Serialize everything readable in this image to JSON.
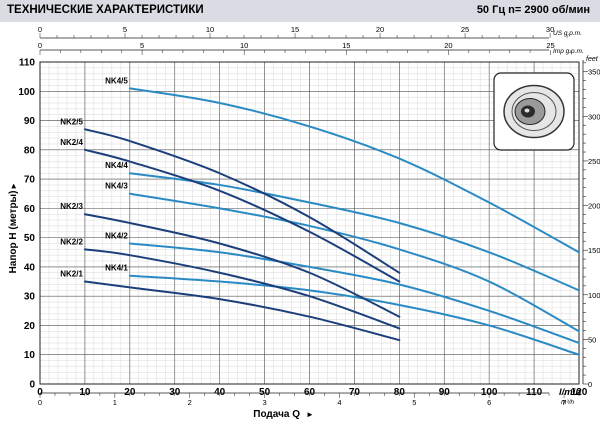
{
  "header": {
    "title": "ТЕХНИЧЕСКИЕ ХАРАКТЕРИСТИКИ",
    "right": "50 Гц   n= 2900 об/мин"
  },
  "image_badge": "pump-impeller-image",
  "chart_data": {
    "type": "line",
    "xlabel": "Подача Q",
    "ylabel": "Напор H (метры)",
    "xlim": [
      0,
      120
    ],
    "ylim": [
      0,
      110
    ],
    "x_ticks": [
      0,
      10,
      20,
      30,
      40,
      50,
      60,
      70,
      80,
      90,
      100,
      110,
      120
    ],
    "y_ticks": [
      0,
      10,
      20,
      30,
      40,
      50,
      60,
      70,
      80,
      90,
      100,
      110
    ],
    "x_unit": "l/min",
    "y_right_unit": "feet",
    "feet_ticks": [
      0,
      50,
      100,
      150,
      200,
      250,
      300,
      350
    ],
    "top_us_ticks": [
      0,
      5,
      10,
      15,
      20,
      25,
      30
    ],
    "top_us_unit": "US g.p.m.",
    "top_imp_ticks": [
      0,
      5,
      10,
      15,
      20,
      25
    ],
    "top_imp_unit": "Imp g.p.m.",
    "bottom_m3h_ticks": [
      0,
      1,
      2,
      3,
      4,
      5,
      6,
      7
    ],
    "bottom_m3h_unit": "m³/h",
    "grid": true,
    "series": [
      {
        "name": "NK4/5",
        "x": [
          20,
          40,
          60,
          80,
          100,
          120
        ],
        "y": [
          101,
          96,
          88,
          77,
          62,
          45
        ],
        "color": "#2a8bc4"
      },
      {
        "name": "NK4/4",
        "x": [
          20,
          40,
          60,
          80,
          100,
          120
        ],
        "y": [
          72,
          68,
          62,
          55,
          45,
          32
        ],
        "color": "#2a8bc4"
      },
      {
        "name": "NK4/3",
        "x": [
          20,
          40,
          60,
          80,
          100,
          120
        ],
        "y": [
          65,
          60,
          54,
          46,
          35,
          18
        ],
        "color": "#2a8bc4"
      },
      {
        "name": "NK4/2",
        "x": [
          20,
          40,
          60,
          80,
          100,
          120
        ],
        "y": [
          48,
          45,
          40,
          34,
          25,
          14
        ],
        "color": "#2a8bc4"
      },
      {
        "name": "NK4/1",
        "x": [
          20,
          40,
          60,
          80,
          100,
          120
        ],
        "y": [
          37,
          35,
          32,
          27,
          20,
          10
        ],
        "color": "#2a8bc4"
      },
      {
        "name": "NK2/5",
        "x": [
          10,
          20,
          40,
          60,
          80
        ],
        "y": [
          87,
          83,
          72,
          57,
          38
        ],
        "color": "#1c3f7c"
      },
      {
        "name": "NK2/4",
        "x": [
          10,
          20,
          40,
          60,
          80
        ],
        "y": [
          80,
          76,
          66,
          52,
          35
        ],
        "color": "#1c3f7c"
      },
      {
        "name": "NK2/3",
        "x": [
          10,
          20,
          40,
          60,
          80
        ],
        "y": [
          58,
          55,
          48,
          38,
          23
        ],
        "color": "#1c3f7c"
      },
      {
        "name": "NK2/2",
        "x": [
          10,
          20,
          40,
          60,
          80
        ],
        "y": [
          46,
          44,
          38,
          30,
          19
        ],
        "color": "#1c3f7c"
      },
      {
        "name": "NK2/1",
        "x": [
          10,
          20,
          40,
          60,
          80
        ],
        "y": [
          35,
          33,
          29,
          23,
          15
        ],
        "color": "#1c3f7c"
      }
    ]
  }
}
